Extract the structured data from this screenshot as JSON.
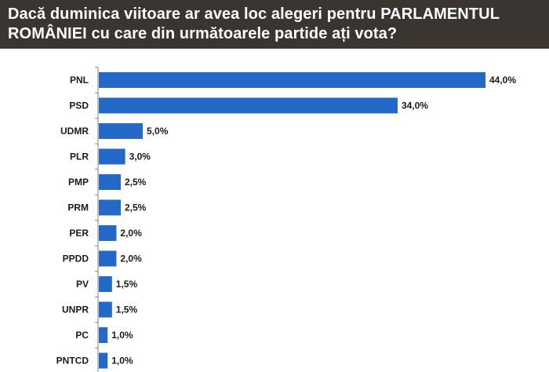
{
  "header": {
    "title": "Dacă duminica viitoare ar avea loc alegeri pentru PARLAMENTUL ROMÂNIEI cu care din următoarele partide ați vota?"
  },
  "chart_data": {
    "type": "bar",
    "orientation": "horizontal",
    "title": "Dacă duminica viitoare ar avea loc alegeri pentru PARLAMENTUL ROMÂNIEI cu care din următoarele partide ați vota?",
    "xlabel": "",
    "ylabel": "",
    "categories": [
      "PNL",
      "PSD",
      "UDMR",
      "PLR",
      "PMP",
      "PRM",
      "PER",
      "PPDD",
      "PV",
      "UNPR",
      "PC",
      "PNTCD"
    ],
    "values": [
      44.0,
      34.0,
      5.0,
      3.0,
      2.5,
      2.5,
      2.0,
      2.0,
      1.5,
      1.5,
      1.0,
      1.0
    ],
    "value_labels": [
      "44,0%",
      "34,0%",
      "5,0%",
      "3,0%",
      "2,5%",
      "2,5%",
      "2,0%",
      "2,0%",
      "1,5%",
      "1,5%",
      "1,0%",
      "1,0%"
    ],
    "xlim": [
      0,
      44
    ],
    "grid": false,
    "legend": "none",
    "bar_color": "#2569c8"
  }
}
